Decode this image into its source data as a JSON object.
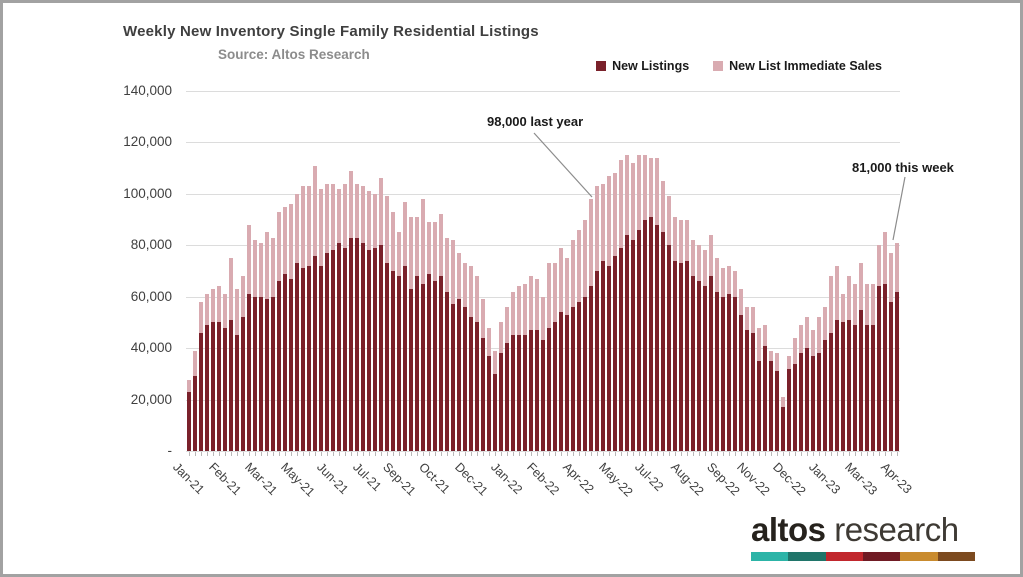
{
  "chart_data": {
    "type": "bar",
    "stacked": true,
    "title": "Weekly New Inventory Single Family Residential Listings",
    "subtitle": "Source: Altos Research",
    "ylim": [
      0,
      140000
    ],
    "grid": true,
    "legend_position": "top-right",
    "y_ticks": [
      {
        "value": 0,
        "label": "-"
      },
      {
        "value": 20000,
        "label": "20,000"
      },
      {
        "value": 40000,
        "label": "40,000"
      },
      {
        "value": 60000,
        "label": "60,000"
      },
      {
        "value": 80000,
        "label": "80,000"
      },
      {
        "value": 100000,
        "label": "100,000"
      },
      {
        "value": 120000,
        "label": "120,000"
      },
      {
        "value": 140000,
        "label": "140,000"
      }
    ],
    "x_tick_labels": [
      {
        "label": "Jan-21",
        "index": 0
      },
      {
        "label": "Feb-21",
        "index": 6
      },
      {
        "label": "Mar-21",
        "index": 12
      },
      {
        "label": "May-21",
        "index": 18
      },
      {
        "label": "Jun-21",
        "index": 24
      },
      {
        "label": "Jul-21",
        "index": 30
      },
      {
        "label": "Sep-21",
        "index": 35
      },
      {
        "label": "Oct-21",
        "index": 41
      },
      {
        "label": "Dec-21",
        "index": 47
      },
      {
        "label": "Jan-22",
        "index": 53
      },
      {
        "label": "Feb-22",
        "index": 59
      },
      {
        "label": "Apr-22",
        "index": 65
      },
      {
        "label": "May-22",
        "index": 71
      },
      {
        "label": "Jul-22",
        "index": 77
      },
      {
        "label": "Aug-22",
        "index": 83
      },
      {
        "label": "Sep-22",
        "index": 89
      },
      {
        "label": "Nov-22",
        "index": 94
      },
      {
        "label": "Dec-22",
        "index": 100
      },
      {
        "label": "Jan-23",
        "index": 106
      },
      {
        "label": "Mar-23",
        "index": 112
      },
      {
        "label": "Apr-23",
        "index": 118
      }
    ],
    "n_weeks": 119,
    "series": [
      {
        "name": "New Listings",
        "color": "#7a212b",
        "values": [
          23000,
          29000,
          46000,
          49000,
          50000,
          50000,
          48000,
          51000,
          45000,
          52000,
          61000,
          60000,
          60000,
          59000,
          60000,
          66000,
          69000,
          67000,
          73000,
          71000,
          72000,
          76000,
          72000,
          77000,
          78000,
          81000,
          79000,
          83000,
          83000,
          81000,
          78000,
          79000,
          80000,
          73000,
          70000,
          68000,
          72000,
          63000,
          68000,
          65000,
          69000,
          66000,
          68000,
          62000,
          57000,
          59000,
          56000,
          52000,
          50000,
          44000,
          37000,
          30000,
          38000,
          42000,
          45000,
          45000,
          45000,
          47000,
          47000,
          43000,
          48000,
          50000,
          54000,
          53000,
          56000,
          58000,
          60000,
          64000,
          70000,
          74000,
          72000,
          76000,
          79000,
          84000,
          82000,
          86000,
          90000,
          91000,
          88000,
          85000,
          80000,
          74000,
          73000,
          74000,
          68000,
          66000,
          64000,
          68000,
          62000,
          60000,
          61000,
          60000,
          53000,
          47000,
          46000,
          35000,
          41000,
          35000,
          31000,
          17000,
          32000,
          34000,
          38000,
          40000,
          37000,
          38000,
          43000,
          46000,
          51000,
          50000,
          51000,
          49000,
          55000,
          49000,
          49000,
          64000,
          65000,
          58000,
          62000
        ]
      },
      {
        "name": "New List Immediate Sales",
        "color": "#d9abb1",
        "values": [
          4500,
          10000,
          12000,
          12000,
          13000,
          14000,
          13000,
          24000,
          18000,
          16000,
          27000,
          22000,
          21000,
          26000,
          23000,
          27000,
          26000,
          29000,
          27000,
          32000,
          31000,
          35000,
          30000,
          27000,
          26000,
          21000,
          25000,
          26000,
          21000,
          22000,
          23000,
          21000,
          26000,
          26000,
          23000,
          17000,
          25000,
          28000,
          23000,
          33000,
          20000,
          23000,
          24000,
          21000,
          25000,
          18000,
          17000,
          20000,
          18000,
          15000,
          11000,
          9000,
          12000,
          14000,
          17000,
          19000,
          20000,
          21000,
          20000,
          17000,
          25000,
          23000,
          25000,
          22000,
          26000,
          28000,
          30000,
          34000,
          33000,
          30000,
          35000,
          32000,
          34000,
          31000,
          30000,
          29000,
          25000,
          23000,
          26000,
          20000,
          19000,
          17000,
          17000,
          16000,
          14000,
          14000,
          14000,
          16000,
          13000,
          11000,
          11000,
          10000,
          10000,
          9000,
          10000,
          13000,
          8000,
          4000,
          7000,
          4000,
          5000,
          10000,
          11000,
          12000,
          10000,
          14000,
          13000,
          22000,
          21000,
          11000,
          17000,
          16000,
          18000,
          16000,
          16000,
          16000,
          20000,
          19000,
          19000
        ]
      }
    ],
    "annotations": [
      {
        "text": "98,000 last year",
        "week_index": 67,
        "value": 98000
      },
      {
        "text": "81,000 this week",
        "week_index": 118,
        "value": 81000
      }
    ]
  },
  "logo": {
    "brand_bold": "altos",
    "brand_light": "research",
    "bar_colors": [
      "#2cb4a7",
      "#20756a",
      "#c1272d",
      "#701b24",
      "#c98b2e",
      "#7c4a1f"
    ]
  },
  "colors": {
    "gridline": "#dcdcdc",
    "annotation_line": "#8c8c8c",
    "background": "#ffffff"
  }
}
